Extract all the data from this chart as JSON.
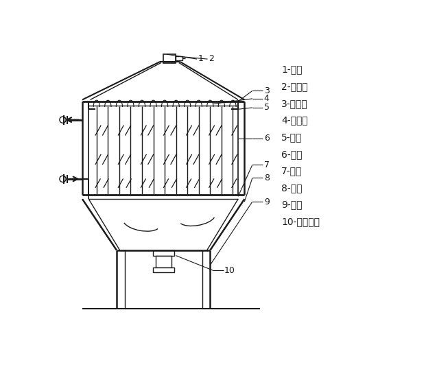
{
  "bg_color": "#ffffff",
  "line_color": "#1a1a1a",
  "legend_items": [
    "1-电机",
    "2-偏心块",
    "3-振动架",
    "4-橡胶座",
    "5-支座",
    "6-滤袋",
    "7-花板",
    "8-灰斗",
    "9-支柱",
    "10-密封插板"
  ],
  "fig_width": 6.21,
  "fig_height": 5.38,
  "dpi": 100
}
